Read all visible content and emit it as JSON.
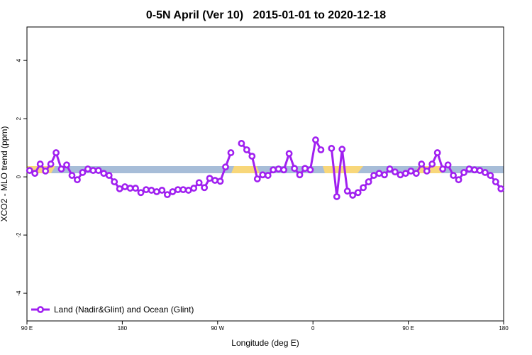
{
  "chart_data": {
    "type": "line",
    "title": "0-5N April (Ver 10)   2015-01-01 to 2020-12-18",
    "x_label": "Longitude (deg E)",
    "y_label": "XCO2 - MLO trend (ppm)",
    "x": [
      92.5,
      97.5,
      102.5,
      107.5,
      112.5,
      117.5,
      122.5,
      127.5,
      132.5,
      137.5,
      142.5,
      147.5,
      152.5,
      157.5,
      162.5,
      167.5,
      172.5,
      177.5,
      182.5,
      187.5,
      192.5,
      197.5,
      202.5,
      207.5,
      212.5,
      217.5,
      222.5,
      227.5,
      232.5,
      237.5,
      242.5,
      247.5,
      252.5,
      257.5,
      262.5,
      267.5,
      272.5,
      277.5,
      282.5,
      287.5,
      292.5,
      297.5,
      302.5,
      307.5,
      312.5,
      317.5,
      322.5,
      327.5,
      332.5,
      337.5,
      342.5,
      347.5,
      352.5,
      357.5,
      362.5,
      367.5,
      372.5,
      377.5,
      382.5,
      387.5,
      392.5,
      397.5,
      402.5,
      407.5,
      412.5,
      417.5,
      422.5,
      427.5,
      432.5,
      437.5,
      442.5,
      447.5,
      452.5,
      457.5,
      462.5,
      467.5,
      472.5,
      477.5,
      482.5,
      487.5,
      492.5,
      497.5,
      502.5,
      507.5,
      512.5,
      517.5,
      522.5,
      527.5,
      532.5,
      537.5
    ],
    "series": [
      {
        "name": "Land (Nadir&Glint) and Ocean (Glint)",
        "color": "#a020f0",
        "values": [
          0.22,
          0.12,
          0.44,
          0.2,
          0.44,
          0.83,
          0.27,
          0.41,
          0.05,
          -0.1,
          0.15,
          0.27,
          0.22,
          0.22,
          0.12,
          0.05,
          -0.17,
          -0.41,
          -0.34,
          -0.39,
          -0.39,
          -0.54,
          -0.44,
          -0.46,
          -0.51,
          -0.46,
          -0.61,
          -0.51,
          -0.44,
          -0.44,
          -0.46,
          -0.39,
          -0.2,
          -0.37,
          -0.05,
          -0.12,
          -0.15,
          0.34,
          0.83,
          null,
          1.15,
          0.93,
          0.71,
          -0.07,
          0.07,
          0.05,
          0.24,
          0.27,
          0.24,
          0.8,
          0.29,
          0.07,
          0.29,
          0.24,
          1.27,
          0.93,
          null,
          0.98,
          -0.68,
          0.95,
          -0.49,
          -0.63,
          -0.54,
          -0.37,
          -0.17,
          0.05,
          0.12,
          0.07,
          0.27,
          0.17,
          0.07,
          0.12,
          0.2,
          0.12,
          0.44,
          0.2,
          0.44,
          0.83,
          0.27,
          0.41,
          0.05,
          -0.1,
          0.15,
          0.27,
          0.24,
          0.22,
          0.15,
          0.05,
          -0.17,
          -0.41
        ]
      }
    ],
    "xlim": [
      90,
      540
    ],
    "xticks": [
      {
        "value": 90,
        "label": "90 E"
      },
      {
        "value": 180,
        "label": "180"
      },
      {
        "value": 270,
        "label": "90 W"
      },
      {
        "value": 360,
        "label": "0"
      },
      {
        "value": 450,
        "label": "90 E"
      },
      {
        "value": 540,
        "label": "180"
      }
    ],
    "ylim": [
      -4.95,
      5.15
    ],
    "yticks": [
      -4,
      -2,
      0,
      2,
      4
    ],
    "grid": false,
    "legend": "lower left"
  }
}
